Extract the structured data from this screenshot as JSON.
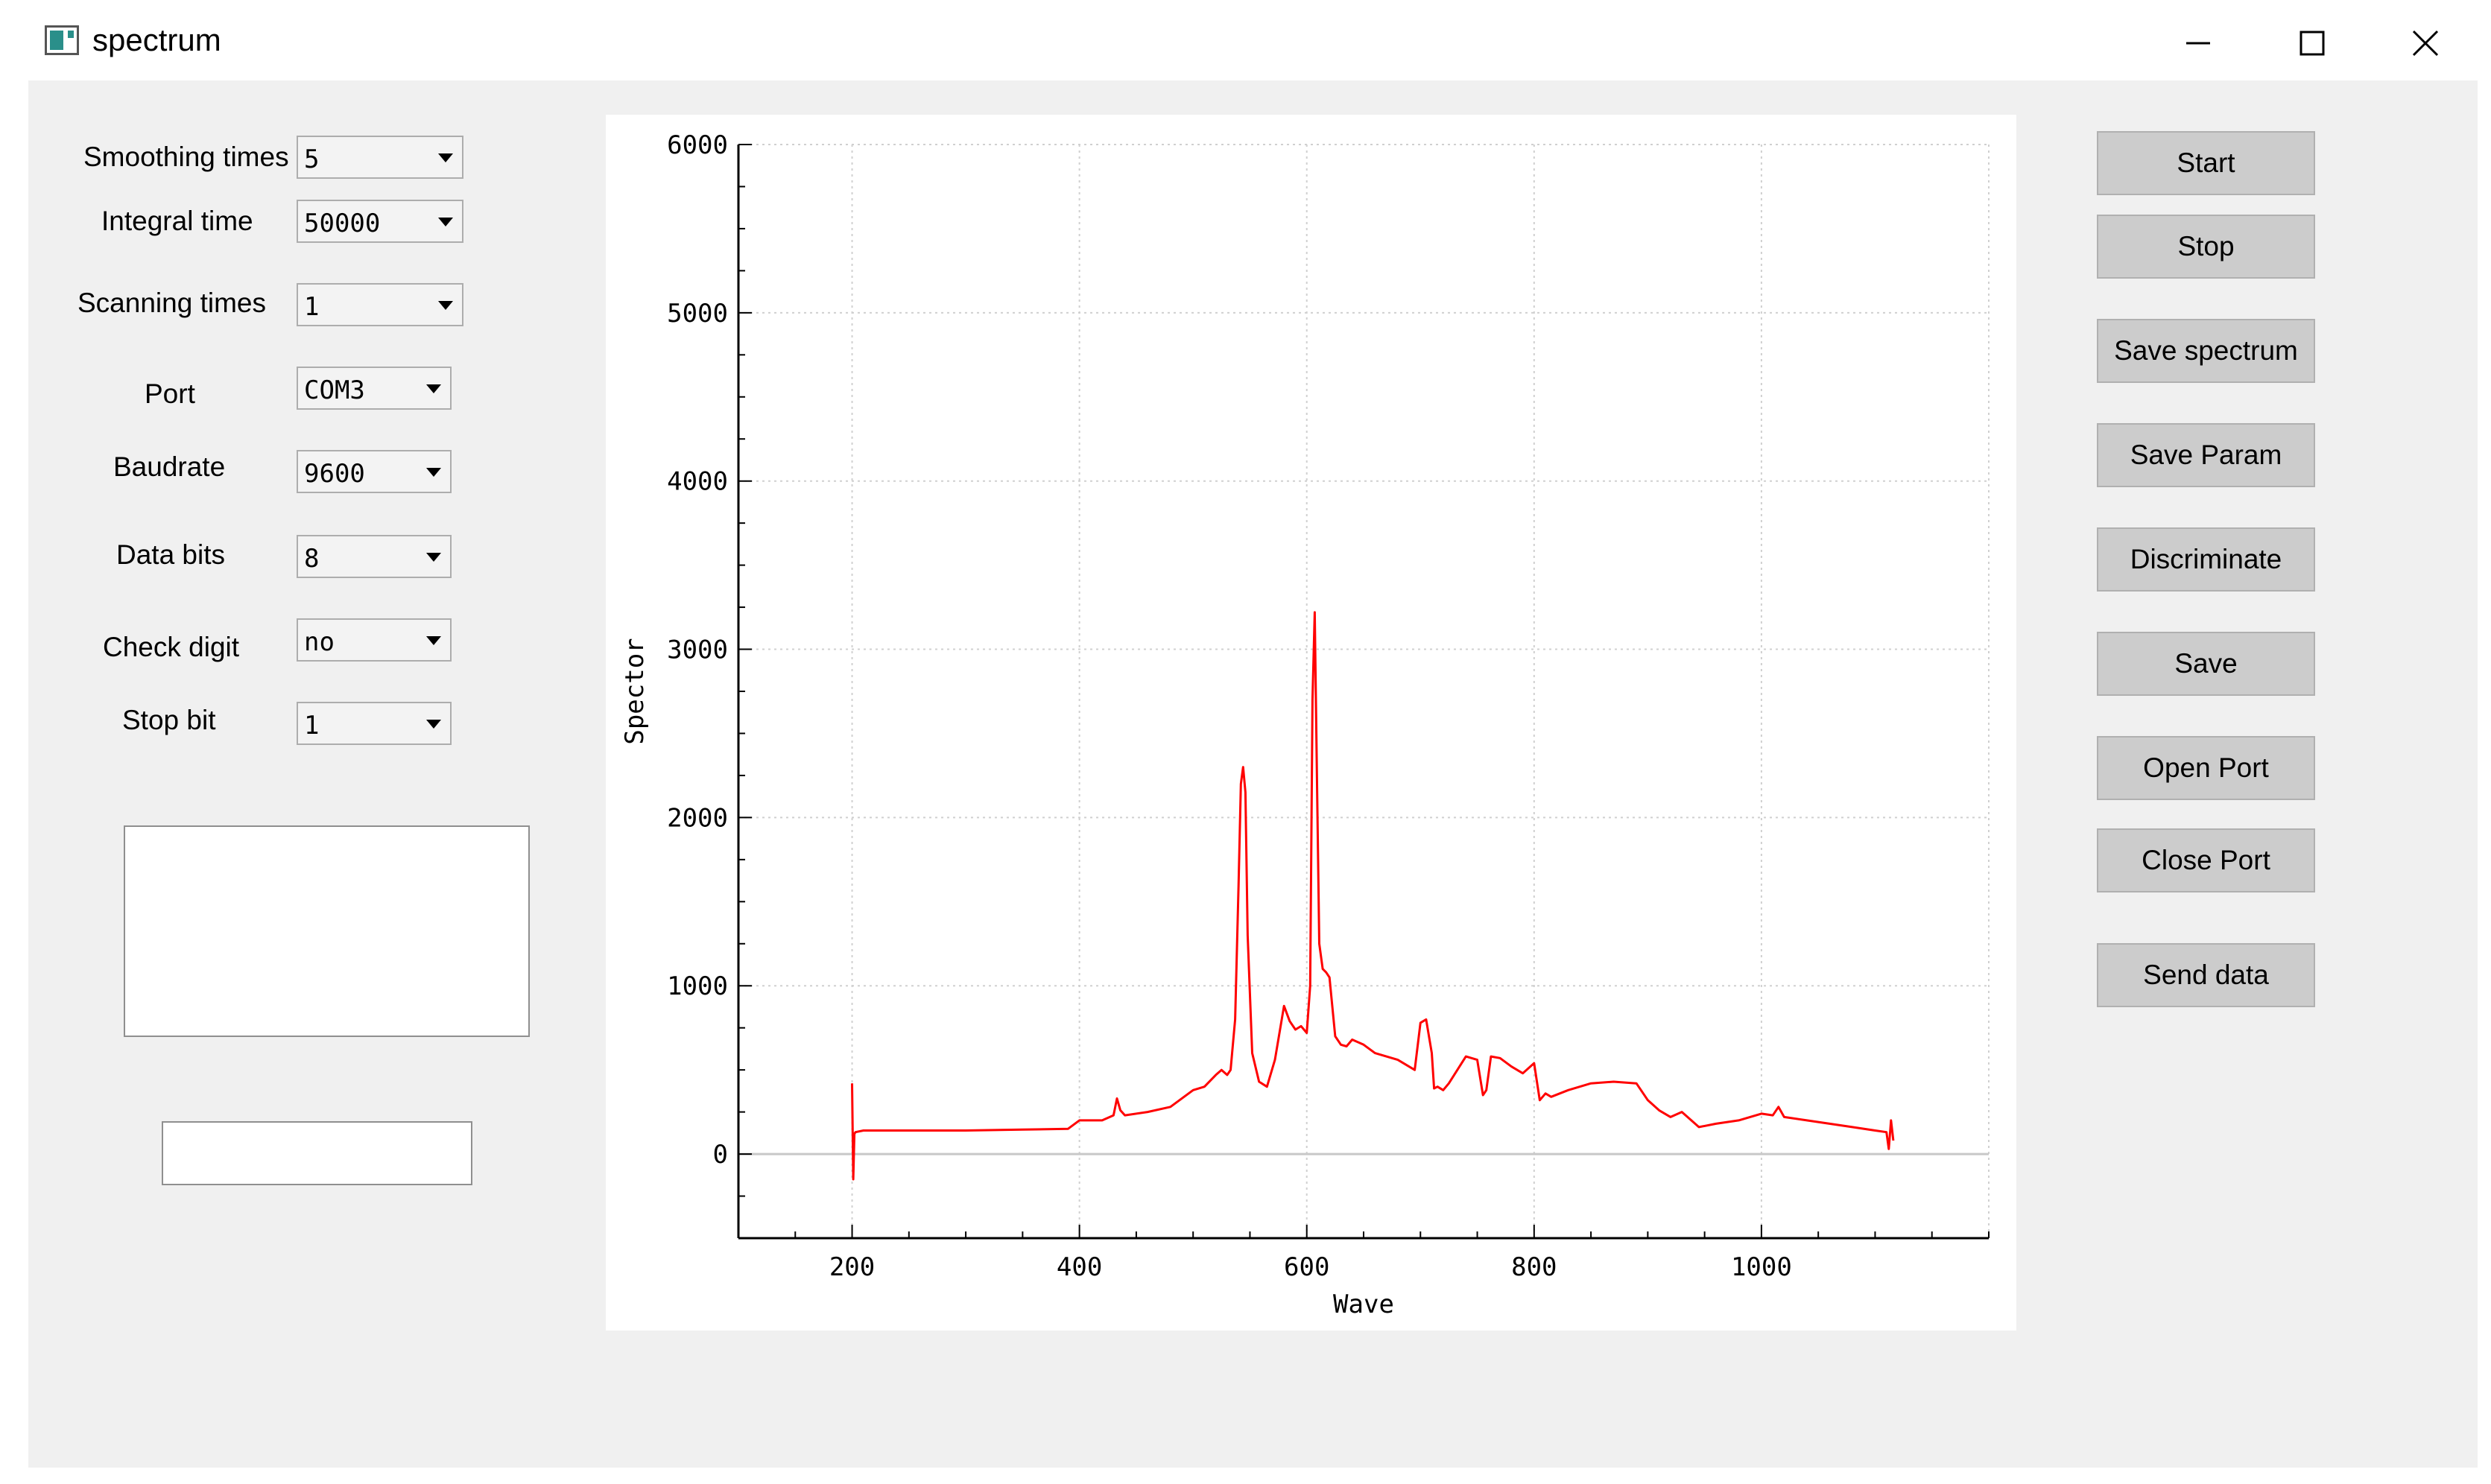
{
  "window": {
    "title": "spectrum",
    "icons": {
      "app": "app-icon",
      "minimize": "minimize-icon",
      "maximize": "maximize-icon",
      "close": "close-icon"
    }
  },
  "params": [
    {
      "label": "Smoothing times",
      "value": "5"
    },
    {
      "label": "Integral time",
      "value": "50000"
    },
    {
      "label": "Scanning times",
      "value": "1"
    },
    {
      "label": "Port",
      "value": "COM3"
    },
    {
      "label": "Baudrate",
      "value": "9600"
    },
    {
      "label": "Data bits",
      "value": "8"
    },
    {
      "label": "Check digit",
      "value": "no"
    },
    {
      "label": "Stop bit",
      "value": "1"
    }
  ],
  "buttons": {
    "start": "Start",
    "stop": "Stop",
    "save_spectrum": "Save spectrum",
    "save_param": "Save Param",
    "discriminate": "Discriminate",
    "save": "Save",
    "open_port": "Open Port",
    "close_port": "Close Port",
    "send_data": "Send data"
  },
  "chart_data": {
    "type": "line",
    "xlabel": "Wave",
    "ylabel": "Spector",
    "xlim": [
      100,
      1200
    ],
    "ylim": [
      -500,
      6000
    ],
    "xticks": [
      200,
      400,
      600,
      800,
      1000
    ],
    "yticks": [
      0,
      1000,
      2000,
      3000,
      4000,
      5000,
      6000
    ],
    "grid": true,
    "colors": {
      "line": "#ff0000",
      "zero_line": "#c8c8c8",
      "grid": "#d0d0d0"
    },
    "series": [
      {
        "x": [
          200,
          201,
          202,
          203,
          210,
          250,
          300,
          350,
          390,
          400,
          420,
          430,
          433,
          436,
          440,
          460,
          480,
          500,
          510,
          520,
          525,
          530,
          533,
          537,
          540,
          542,
          544,
          546,
          548,
          552,
          558,
          565,
          572,
          580,
          585,
          590,
          595,
          600,
          603,
          605,
          607,
          609,
          611,
          614,
          617,
          620,
          625,
          630,
          635,
          640,
          650,
          660,
          680,
          695,
          700,
          705,
          710,
          712,
          715,
          720,
          725,
          740,
          750,
          755,
          758,
          762,
          770,
          780,
          790,
          800,
          805,
          810,
          815,
          830,
          850,
          870,
          890,
          900,
          910,
          920,
          930,
          945,
          960,
          980,
          1000,
          1010,
          1015,
          1020,
          1040,
          1060,
          1080,
          1100,
          1110,
          1112,
          1114,
          1116
        ],
        "y": [
          420,
          -150,
          120,
          130,
          140,
          140,
          140,
          145,
          150,
          200,
          200,
          230,
          330,
          260,
          230,
          250,
          280,
          380,
          400,
          470,
          500,
          470,
          500,
          800,
          1600,
          2200,
          2300,
          2150,
          1300,
          600,
          430,
          400,
          560,
          880,
          790,
          740,
          760,
          720,
          1000,
          2700,
          3220,
          2200,
          1250,
          1100,
          1080,
          1050,
          700,
          650,
          640,
          680,
          650,
          600,
          560,
          500,
          780,
          800,
          600,
          390,
          400,
          380,
          420,
          580,
          560,
          350,
          380,
          580,
          570,
          520,
          480,
          540,
          320,
          360,
          340,
          380,
          420,
          430,
          420,
          320,
          260,
          220,
          250,
          160,
          180,
          200,
          240,
          230,
          280,
          220,
          200,
          180,
          160,
          140,
          130,
          30,
          200,
          80
        ]
      }
    ]
  }
}
